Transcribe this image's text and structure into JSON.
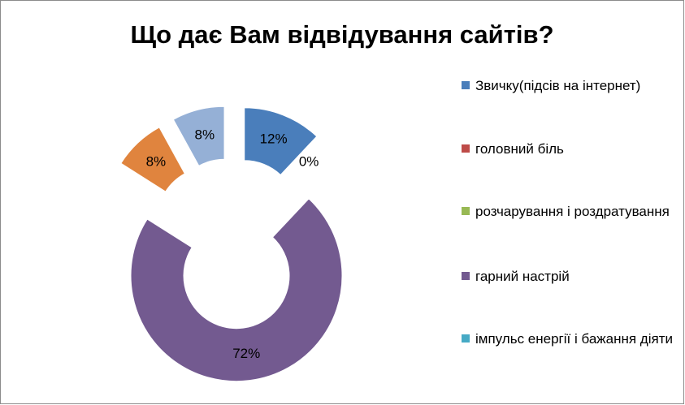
{
  "chart_data": {
    "type": "doughnut",
    "title": "Що дає Вам відвідування сайтів?",
    "categories": [
      "Звичку(підсів на інтернет)",
      "головний біль",
      "розчарування і роздратування",
      "гарний настрій",
      "імпульс енергії і бажання діяти",
      null,
      null
    ],
    "values": [
      12,
      0,
      0,
      72,
      0,
      8,
      8
    ],
    "value_labels": [
      "12%",
      "0%",
      null,
      "72%",
      null,
      "8%",
      "8%"
    ],
    "colors": [
      "#4a7ebb",
      "#be4b48",
      "#98b954",
      "#735a90",
      "#46aac5",
      "#e0843e",
      "#95b0d6"
    ],
    "legend": "right"
  }
}
